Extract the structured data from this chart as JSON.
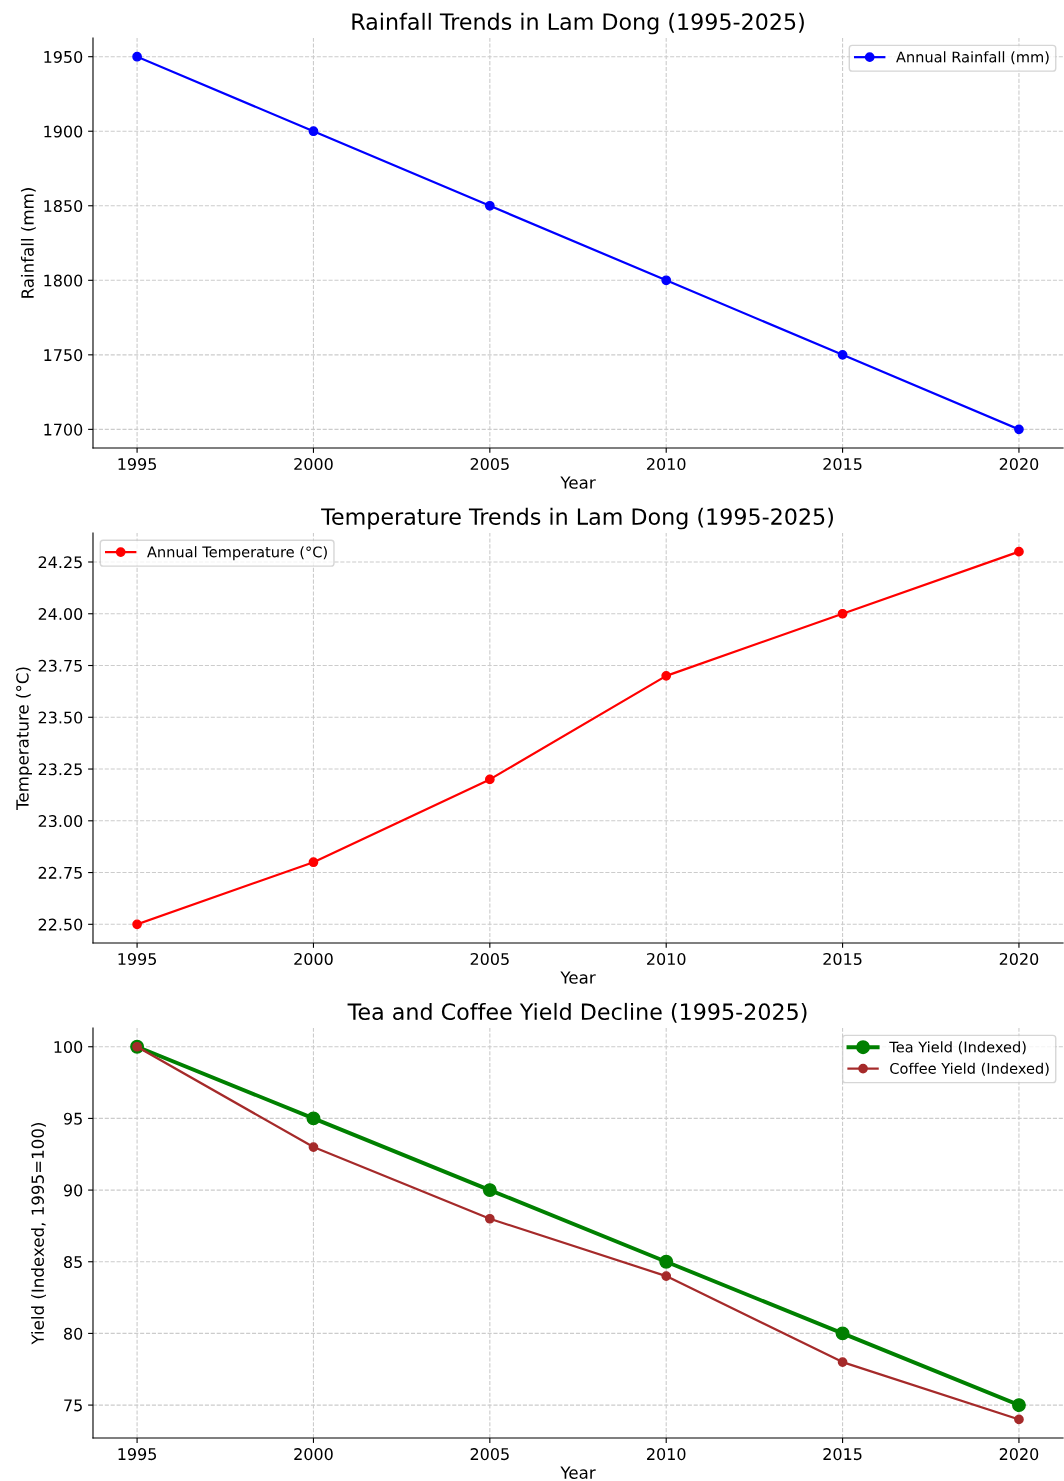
{
  "chart_data": [
    {
      "type": "line",
      "title": "Rainfall Trends in Lam Dong (1995-2025)",
      "xlabel": "Year",
      "ylabel": "Rainfall (mm)",
      "x": [
        1995,
        2000,
        2005,
        2010,
        2015,
        2020
      ],
      "series": [
        {
          "name": "Annual Rainfall (mm)",
          "color": "#0000ff",
          "values": [
            1950,
            1900,
            1850,
            1800,
            1750,
            1700
          ]
        }
      ],
      "xlim": [
        1993.75,
        2021.25
      ],
      "ylim": [
        1687.5,
        1962.5
      ],
      "xticks": [
        1995,
        2000,
        2005,
        2010,
        2015,
        2020
      ],
      "yticks": [
        1700,
        1750,
        1800,
        1850,
        1900,
        1950
      ],
      "grid": true,
      "legend": "top right",
      "marker": "circle",
      "line_style": "solid"
    },
    {
      "type": "line",
      "title": "Temperature Trends in Lam Dong (1995-2025)",
      "xlabel": "Year",
      "ylabel": "Temperature (°C)",
      "x": [
        1995,
        2000,
        2005,
        2010,
        2015,
        2020
      ],
      "series": [
        {
          "name": "Annual Temperature (°C)",
          "color": "#ff0000",
          "values": [
            22.5,
            22.8,
            23.2,
            23.7,
            24.0,
            24.3
          ]
        }
      ],
      "xlim": [
        1993.75,
        2021.25
      ],
      "ylim": [
        22.41,
        24.39
      ],
      "xticks": [
        1995,
        2000,
        2005,
        2010,
        2015,
        2020
      ],
      "yticks": [
        {
          "value": 22.5,
          "label": "22.50"
        },
        {
          "value": 22.75,
          "label": "22.75"
        },
        {
          "value": 23.0,
          "label": "23.00"
        },
        {
          "value": 23.25,
          "label": "23.25"
        },
        {
          "value": 23.5,
          "label": "23.50"
        },
        {
          "value": 23.75,
          "label": "23.75"
        },
        {
          "value": 24.0,
          "label": "24.00"
        },
        {
          "value": 24.25,
          "label": "24.25"
        }
      ],
      "grid": true,
      "legend": "top left",
      "marker": "circle",
      "line_style": "solid"
    },
    {
      "type": "line",
      "title": "Tea and Coffee Yield Decline (1995-2025)",
      "xlabel": "Year",
      "ylabel": "Yield (Indexed, 1995=100)",
      "x": [
        1995,
        2000,
        2005,
        2010,
        2015,
        2020
      ],
      "series": [
        {
          "name": "Tea Yield (Indexed)",
          "color": "#008000",
          "values": [
            100,
            95,
            90,
            85,
            80,
            75
          ]
        },
        {
          "name": "Coffee Yield (Indexed)",
          "color": "#a52a2a",
          "values": [
            100,
            93,
            88,
            84,
            78,
            74
          ]
        }
      ],
      "xlim": [
        1993.75,
        2021.25
      ],
      "ylim": [
        72.7,
        101.3
      ],
      "xticks": [
        1995,
        2000,
        2005,
        2010,
        2015,
        2020
      ],
      "yticks": [
        75,
        80,
        85,
        90,
        95,
        100
      ],
      "grid": true,
      "legend": "top right",
      "marker": "circle",
      "line_style": "solid"
    }
  ]
}
